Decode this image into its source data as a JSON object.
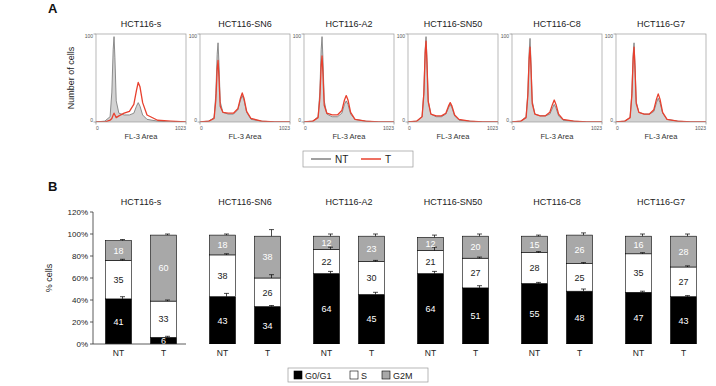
{
  "chart_data": [
    {
      "type": "line",
      "title": "HCT116-s",
      "annotations": [
        "A"
      ],
      "legend": "bottom",
      "x_label": "FL-3 Area",
      "y_label": "Number of cells",
      "x": [
        0,
        100,
        160,
        180,
        195,
        205,
        215,
        230,
        260,
        320,
        380,
        430,
        460,
        480,
        500,
        530,
        580,
        700,
        850,
        1023
      ],
      "xlim": [
        0,
        1023
      ],
      "ylim": [
        0,
        100
      ],
      "xticks": [
        0,
        1023
      ],
      "yticks": [
        0,
        100
      ],
      "series": [
        {
          "name": "NT",
          "type": "area",
          "color": "#808080",
          "values": [
            0,
            1,
            6,
            34,
            82,
            97,
            73,
            24,
            10,
            8,
            8,
            10,
            18,
            22,
            18,
            8,
            3,
            1,
            0,
            0
          ]
        },
        {
          "name": "T",
          "type": "line",
          "color": "#e8402e",
          "values": [
            0,
            0,
            2,
            4,
            8,
            10,
            8,
            5,
            7,
            10,
            12,
            20,
            36,
            45,
            40,
            22,
            8,
            2,
            1,
            0
          ]
        }
      ]
    },
    {
      "type": "line",
      "title": "HCT116-SN6",
      "x_label": "FL-3 Area",
      "x": [
        0,
        100,
        160,
        180,
        195,
        205,
        215,
        230,
        260,
        320,
        380,
        430,
        460,
        480,
        500,
        530,
        580,
        700,
        850,
        1023
      ],
      "xlim": [
        0,
        1023
      ],
      "ylim": [
        0,
        100
      ],
      "xticks": [
        0,
        1023
      ],
      "yticks": [
        0,
        100
      ],
      "series": [
        {
          "name": "NT",
          "type": "area",
          "color": "#808080",
          "values": [
            0,
            1,
            5,
            32,
            77,
            90,
            68,
            23,
            11,
            9,
            9,
            14,
            25,
            30,
            25,
            11,
            3,
            1,
            0,
            0
          ]
        },
        {
          "name": "T",
          "type": "line",
          "color": "#e8402e",
          "values": [
            0,
            1,
            4,
            25,
            60,
            70,
            52,
            18,
            11,
            10,
            10,
            15,
            27,
            33,
            27,
            12,
            4,
            1,
            0,
            0
          ]
        }
      ]
    },
    {
      "type": "line",
      "title": "HCT116-A2",
      "x_label": "FL-3 Area",
      "x": [
        0,
        100,
        160,
        180,
        195,
        205,
        215,
        230,
        260,
        320,
        380,
        430,
        460,
        480,
        500,
        530,
        580,
        700,
        850,
        1023
      ],
      "xlim": [
        0,
        1023
      ],
      "ylim": [
        0,
        100
      ],
      "xticks": [
        0,
        1023
      ],
      "yticks": [
        0,
        100
      ],
      "series": [
        {
          "name": "NT",
          "type": "area",
          "color": "#808080",
          "values": [
            0,
            1,
            6,
            34,
            82,
            97,
            73,
            24,
            9,
            6,
            6,
            10,
            20,
            24,
            20,
            9,
            3,
            1,
            0,
            0
          ]
        },
        {
          "name": "T",
          "type": "line",
          "color": "#e8402e",
          "values": [
            0,
            1,
            5,
            27,
            64,
            75,
            56,
            19,
            10,
            8,
            8,
            13,
            25,
            30,
            25,
            11,
            3,
            1,
            0,
            0
          ]
        }
      ]
    },
    {
      "type": "line",
      "title": "HCT116-SN50",
      "x_label": "FL-3 Area",
      "x": [
        0,
        100,
        160,
        180,
        195,
        205,
        215,
        230,
        260,
        320,
        380,
        430,
        460,
        480,
        500,
        530,
        580,
        700,
        850,
        1023
      ],
      "xlim": [
        0,
        1023
      ],
      "ylim": [
        0,
        100
      ],
      "xticks": [
        0,
        1023
      ],
      "yticks": [
        0,
        100
      ],
      "series": [
        {
          "name": "NT",
          "type": "area",
          "color": "#808080",
          "values": [
            0,
            1,
            6,
            34,
            82,
            97,
            73,
            24,
            9,
            6,
            6,
            9,
            16,
            20,
            16,
            7,
            2,
            1,
            0,
            0
          ]
        },
        {
          "name": "T",
          "type": "line",
          "color": "#e8402e",
          "values": [
            0,
            1,
            6,
            32,
            78,
            92,
            69,
            23,
            9,
            7,
            7,
            10,
            18,
            22,
            18,
            8,
            3,
            1,
            0,
            0
          ]
        }
      ]
    },
    {
      "type": "line",
      "title": "HCT116-C8",
      "x_label": "FL-3 Area",
      "x": [
        0,
        100,
        160,
        180,
        195,
        205,
        215,
        230,
        260,
        320,
        380,
        430,
        460,
        480,
        500,
        530,
        580,
        700,
        850,
        1023
      ],
      "xlim": [
        0,
        1023
      ],
      "ylim": [
        0,
        100
      ],
      "xticks": [
        0,
        1023
      ],
      "yticks": [
        0,
        100
      ],
      "series": [
        {
          "name": "NT",
          "type": "area",
          "color": "#808080",
          "values": [
            0,
            1,
            6,
            33,
            80,
            95,
            71,
            24,
            9,
            7,
            7,
            9,
            16,
            20,
            16,
            7,
            2,
            1,
            0,
            0
          ]
        },
        {
          "name": "T",
          "type": "line",
          "color": "#e8402e",
          "values": [
            0,
            1,
            5,
            30,
            72,
            85,
            64,
            21,
            9,
            7,
            7,
            11,
            20,
            25,
            20,
            9,
            3,
            1,
            0,
            0
          ]
        }
      ]
    },
    {
      "type": "line",
      "title": "HCT116-G7",
      "x_label": "FL-3 Area",
      "x": [
        0,
        100,
        160,
        180,
        195,
        205,
        215,
        230,
        260,
        320,
        380,
        430,
        460,
        480,
        500,
        530,
        580,
        700,
        850,
        1023
      ],
      "xlim": [
        0,
        1023
      ],
      "ylim": [
        0,
        100
      ],
      "xticks": [
        0,
        1023
      ],
      "yticks": [
        0,
        100
      ],
      "series": [
        {
          "name": "NT",
          "type": "area",
          "color": "#808080",
          "values": [
            0,
            1,
            5,
            32,
            77,
            90,
            68,
            23,
            11,
            9,
            9,
            12,
            22,
            27,
            22,
            10,
            3,
            1,
            0,
            0
          ]
        },
        {
          "name": "T",
          "type": "line",
          "color": "#e8402e",
          "values": [
            0,
            1,
            5,
            30,
            72,
            85,
            64,
            21,
            11,
            9,
            9,
            14,
            26,
            32,
            26,
            11,
            3,
            1,
            0,
            0
          ]
        }
      ]
    },
    {
      "type": "bar",
      "stacked": true,
      "data_labels": true,
      "title": "HCT116-s",
      "annotations": [
        "B"
      ],
      "legend": "bottom",
      "y_label": "% cells",
      "categories": [
        "NT",
        "T"
      ],
      "ylim": [
        0,
        120
      ],
      "yticks": [
        {
          "value": 0,
          "label": "0%"
        },
        {
          "value": 20,
          "label": "20%"
        },
        {
          "value": 40,
          "label": "40%"
        },
        {
          "value": 60,
          "label": "60%"
        },
        {
          "value": 80,
          "label": "80%"
        },
        {
          "value": 100,
          "label": "100%"
        },
        {
          "value": 120,
          "label": "120%"
        }
      ],
      "series": [
        {
          "name": "G0/G1",
          "color": "#000000",
          "values": [
            41,
            6
          ],
          "errors": [
            2,
            1
          ]
        },
        {
          "name": "S",
          "color": "#ffffff",
          "values": [
            35,
            33
          ],
          "errors": [
            1,
            1
          ]
        },
        {
          "name": "G2M",
          "color": "#a8a8a8",
          "values": [
            18,
            60
          ],
          "errors": [
            1,
            1
          ]
        }
      ]
    },
    {
      "type": "bar",
      "stacked": true,
      "data_labels": true,
      "tick_labels": "x",
      "title": "HCT116-SN6",
      "categories": [
        "NT",
        "T"
      ],
      "ylim": [
        0,
        120
      ],
      "series": [
        {
          "name": "G0/G1",
          "color": "#000000",
          "values": [
            43,
            34
          ],
          "errors": [
            3,
            1
          ]
        },
        {
          "name": "S",
          "color": "#ffffff",
          "values": [
            38,
            26
          ],
          "errors": [
            1,
            3
          ]
        },
        {
          "name": "G2M",
          "color": "#a8a8a8",
          "values": [
            18,
            38
          ],
          "errors": [
            1,
            6
          ]
        }
      ]
    },
    {
      "type": "bar",
      "stacked": true,
      "data_labels": true,
      "tick_labels": "x",
      "title": "HCT116-A2",
      "categories": [
        "NT",
        "T"
      ],
      "ylim": [
        0,
        120
      ],
      "series": [
        {
          "name": "G0/G1",
          "color": "#000000",
          "values": [
            64,
            45
          ],
          "errors": [
            2,
            2
          ]
        },
        {
          "name": "S",
          "color": "#ffffff",
          "values": [
            22,
            30
          ],
          "errors": [
            2,
            1
          ]
        },
        {
          "name": "G2M",
          "color": "#a8a8a8",
          "values": [
            12,
            23
          ],
          "errors": [
            2,
            2
          ]
        }
      ]
    },
    {
      "type": "bar",
      "stacked": true,
      "data_labels": true,
      "tick_labels": "x",
      "title": "HCT116-SN50",
      "categories": [
        "NT",
        "T"
      ],
      "ylim": [
        0,
        120
      ],
      "series": [
        {
          "name": "G0/G1",
          "color": "#000000",
          "values": [
            64,
            51
          ],
          "errors": [
            2,
            2
          ]
        },
        {
          "name": "S",
          "color": "#ffffff",
          "values": [
            21,
            27
          ],
          "errors": [
            3,
            1
          ]
        },
        {
          "name": "G2M",
          "color": "#a8a8a8",
          "values": [
            12,
            20
          ],
          "errors": [
            2,
            2
          ]
        }
      ]
    },
    {
      "type": "bar",
      "stacked": true,
      "data_labels": true,
      "tick_labels": "x",
      "title": "HCT116-C8",
      "categories": [
        "NT",
        "T"
      ],
      "ylim": [
        0,
        120
      ],
      "series": [
        {
          "name": "G0/G1",
          "color": "#000000",
          "values": [
            55,
            48
          ],
          "errors": [
            1,
            2
          ]
        },
        {
          "name": "S",
          "color": "#ffffff",
          "values": [
            28,
            25
          ],
          "errors": [
            1,
            1
          ]
        },
        {
          "name": "G2M",
          "color": "#a8a8a8",
          "values": [
            15,
            26
          ],
          "errors": [
            1,
            2
          ]
        }
      ]
    },
    {
      "type": "bar",
      "stacked": true,
      "data_labels": true,
      "tick_labels": "x",
      "title": "HCT116-G7",
      "categories": [
        "NT",
        "T"
      ],
      "ylim": [
        0,
        120
      ],
      "series": [
        {
          "name": "G0/G1",
          "color": "#000000",
          "values": [
            47,
            43
          ],
          "errors": [
            1,
            1
          ]
        },
        {
          "name": "S",
          "color": "#ffffff",
          "values": [
            35,
            27
          ],
          "errors": [
            1,
            1
          ]
        },
        {
          "name": "G2M",
          "color": "#a8a8a8",
          "values": [
            16,
            28
          ],
          "errors": [
            2,
            2
          ]
        }
      ]
    }
  ]
}
